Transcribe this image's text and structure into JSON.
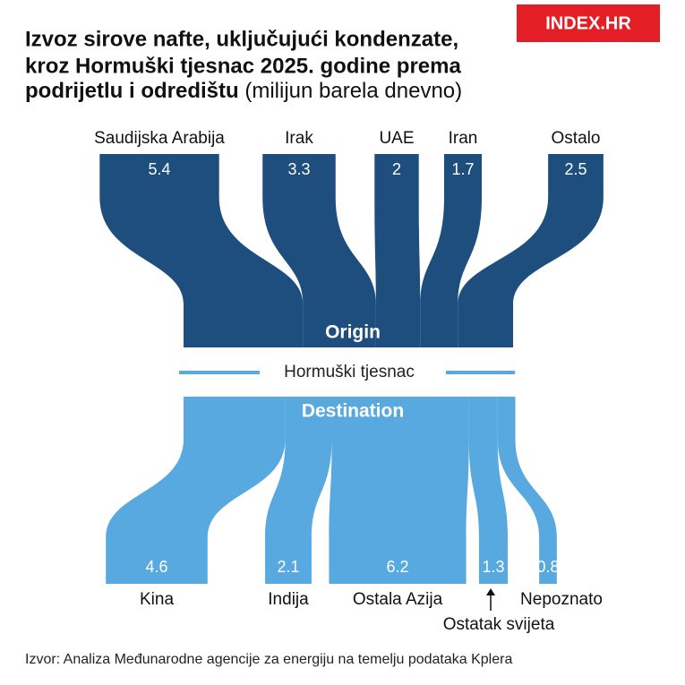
{
  "logo": "INDEX.HR",
  "chart_data": {
    "type": "sankey",
    "title_lines": [
      "Izvoz sirove nafte, uključujući kondenzate,",
      "kroz Hormuški tjesnac 2025. godine prema",
      "podrijetlu i odredištu"
    ],
    "unit": "(milijun barela dnevno)",
    "origin_label": "Origin",
    "destination_label": "Destination",
    "strait_label": "Hormuški tjesnac",
    "origins": {
      "categories": [
        "Saudijska Arabija",
        "Irak",
        "UAE",
        "Iran",
        "Ostalo"
      ],
      "values": [
        5.4,
        3.3,
        2,
        1.7,
        2.5
      ],
      "color": "#1d4e7e"
    },
    "destinations": {
      "categories": [
        "Kina",
        "Indija",
        "Ostala Azija",
        "Ostatak svijeta",
        "Nepoznato"
      ],
      "values": [
        4.6,
        2.1,
        6.2,
        1.3,
        0.8
      ],
      "color": "#58a9df"
    },
    "source": "Izvor: Analiza Međunarodne agencije za energiju na temelju podataka Kplera"
  }
}
